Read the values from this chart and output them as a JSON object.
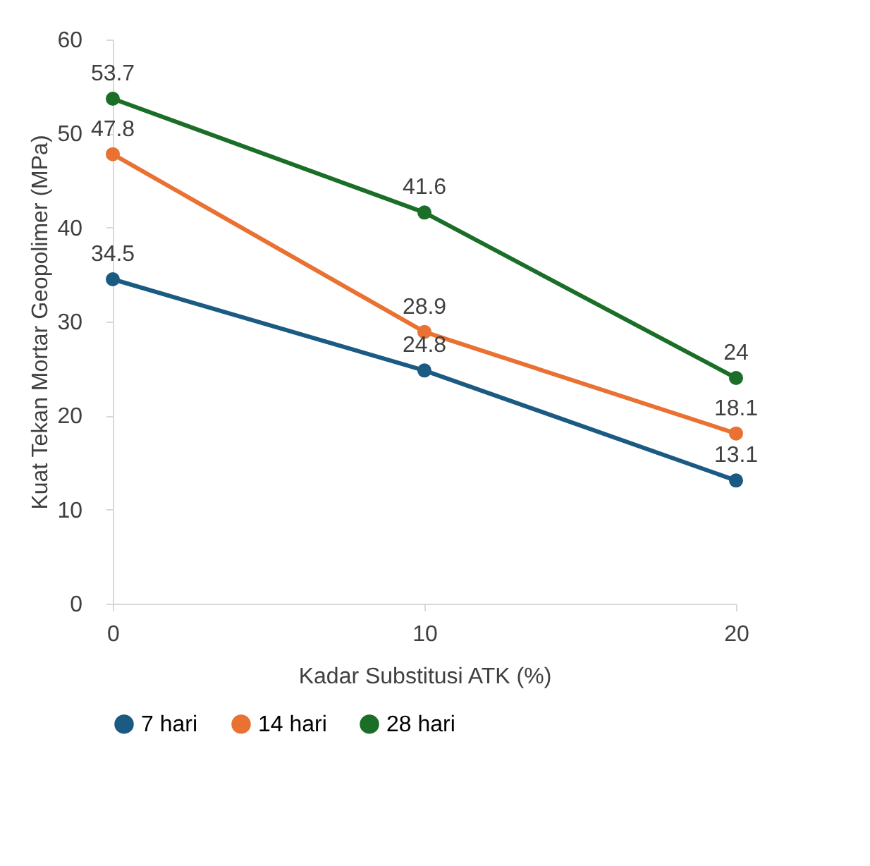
{
  "chart_data": {
    "type": "line",
    "xlabel": "Kadar Substitusi ATK (%)",
    "ylabel": "Kuat Tekan Mortar Geopolimer (MPa)",
    "x": [
      0,
      10,
      20
    ],
    "xlim": [
      0,
      20
    ],
    "xticks": [
      0,
      10,
      20
    ],
    "ylim": [
      0,
      60
    ],
    "yticks": [
      0,
      10,
      20,
      30,
      40,
      50,
      60
    ],
    "series": [
      {
        "name": "7 hari",
        "color": "#1b5a82",
        "values": [
          34.5,
          24.8,
          13.1
        ]
      },
      {
        "name": "14 hari",
        "color": "#e97132",
        "values": [
          47.8,
          28.9,
          18.1
        ]
      },
      {
        "name": "28 hari",
        "color": "#1a6e27",
        "values": [
          53.7,
          41.6,
          24
        ]
      }
    ],
    "data_labels": true,
    "grid": false,
    "legend": "bottom",
    "marker": "circle",
    "line_style": "solid"
  }
}
